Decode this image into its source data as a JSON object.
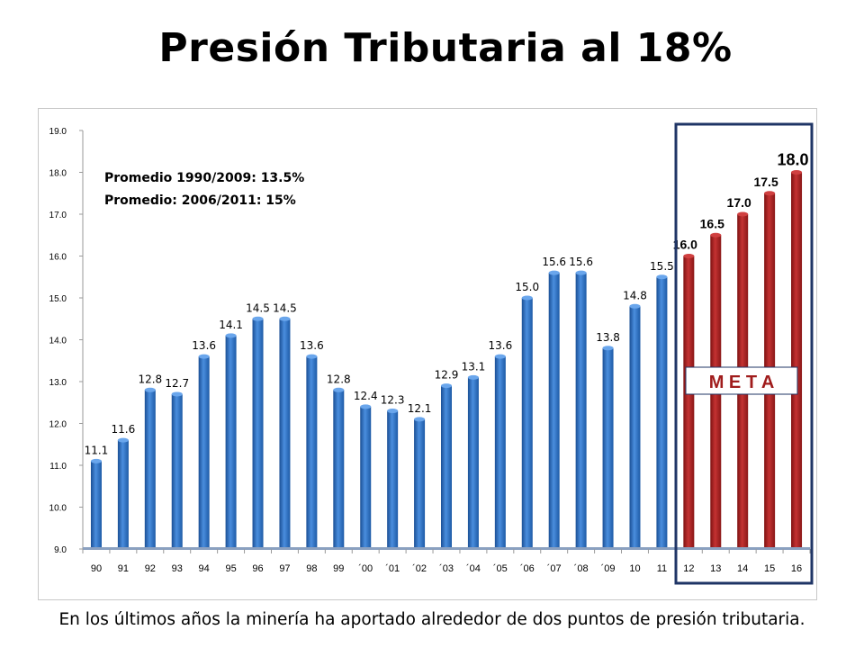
{
  "title": "Presión Tributaria al 18%",
  "footer": "En los últimos años la minería ha aportado alrededor de dos puntos de presión tributaria.",
  "notes": [
    "Promedio 1990/2009: 13.5%",
    "Promedio: 2006/2011: 15%"
  ],
  "meta_label": "M E T A",
  "colors": {
    "historical": "#2a6ab8",
    "meta": "#a01c1c",
    "meta_frame": "#1f3566"
  },
  "chart_data": {
    "type": "bar",
    "categories": [
      "90",
      "91",
      "92",
      "93",
      "94",
      "95",
      "96",
      "97",
      "98",
      "99",
      "´00",
      "´01",
      "´02",
      "´03",
      "´04",
      "´05",
      "´06",
      "´07",
      "´08",
      "´09",
      "10",
      "11",
      "12",
      "13",
      "14",
      "15",
      "16"
    ],
    "values": [
      11.1,
      11.6,
      12.8,
      12.7,
      13.6,
      14.1,
      14.5,
      14.5,
      13.6,
      12.8,
      12.4,
      12.3,
      12.1,
      12.9,
      13.1,
      13.6,
      15.0,
      15.6,
      15.6,
      13.8,
      14.8,
      15.5,
      16.0,
      16.5,
      17.0,
      17.5,
      18.0
    ],
    "data_labels": [
      "11.1",
      "11.6",
      "12.8",
      "12.7",
      "13.6",
      "14.1",
      "14.5",
      "14.5",
      "13.6",
      "12.8",
      "12.4",
      "12.3",
      "12.1",
      "12.9",
      "13.1",
      "13.6",
      "15.0",
      "15.6",
      "15.6",
      "13.8",
      "14.8",
      "15.5",
      "16.0",
      "16.5",
      "17.0",
      "17.5",
      "18.0"
    ],
    "meta_start_index": 22,
    "ylim": [
      9.0,
      19.0
    ],
    "yticks": [
      "9.0",
      "10.0",
      "11.0",
      "12.0",
      "13.0",
      "14.0",
      "15.0",
      "16.0",
      "17.0",
      "18.0",
      "19.0"
    ],
    "grid": false,
    "xlabel": "",
    "ylabel": ""
  }
}
